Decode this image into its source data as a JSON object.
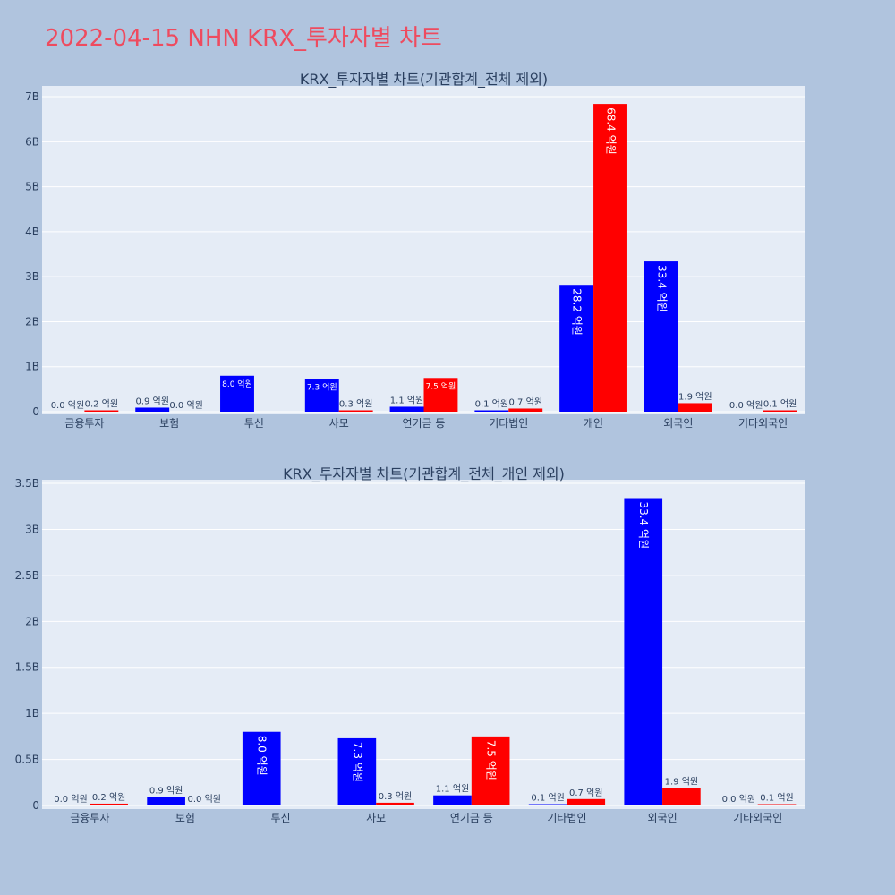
{
  "page_title": "2022-04-15 NHN KRX_투자자별 차트",
  "colors": {
    "buy": "#0000ff",
    "sell": "#ff0000",
    "title": "#ee4b5f",
    "background": "#b0c4de",
    "plot": "#e5ecf6"
  },
  "chart_data": [
    {
      "type": "bar",
      "title": "KRX_투자자별 차트(기관합계_전체 제외)",
      "categories": [
        "금융투자",
        "보험",
        "투신",
        "사모",
        "연기금 등",
        "기타법인",
        "개인",
        "외국인",
        "기타외국인"
      ],
      "series": [
        {
          "color": "#0000ff",
          "values": [
            0.0,
            0.09,
            0.8,
            0.73,
            0.11,
            0.01,
            2.82,
            3.34,
            0.0
          ],
          "labels": [
            "0.0 억원",
            "0.9 억원",
            "8.0 억원",
            "7.3 억원",
            "1.1 억원",
            "0.1 억원",
            "28.2 억원",
            "33.4 억원",
            "0.0 억원"
          ]
        },
        {
          "color": "#ff0000",
          "values": [
            0.02,
            0.0,
            0.0,
            0.03,
            0.75,
            0.07,
            6.84,
            0.19,
            0.01
          ],
          "labels": [
            "0.2 억원",
            "0.0 억원",
            "",
            "0.3 억원",
            "7.5 억원",
            "0.7 억원",
            "68.4 억원",
            "1.9 억원",
            "0.1 억원"
          ]
        }
      ],
      "y_ticks": [
        {
          "value": 0,
          "label": "0"
        },
        {
          "value": 1,
          "label": "1B"
        },
        {
          "value": 2,
          "label": "2B"
        },
        {
          "value": 3,
          "label": "3B"
        },
        {
          "value": 4,
          "label": "4B"
        },
        {
          "value": 5,
          "label": "5B"
        },
        {
          "value": 6,
          "label": "6B"
        },
        {
          "value": 7,
          "label": "7B"
        }
      ],
      "ylim": [
        0,
        7.2
      ],
      "grid": true
    },
    {
      "type": "bar",
      "title": "KRX_투자자별 차트(기관합계_전체_개인 제외)",
      "categories": [
        "금융투자",
        "보험",
        "투신",
        "사모",
        "연기금 등",
        "기타법인",
        "외국인",
        "기타외국인"
      ],
      "series": [
        {
          "color": "#0000ff",
          "values": [
            0.0,
            0.09,
            0.8,
            0.73,
            0.11,
            0.01,
            3.34,
            0.0
          ],
          "labels": [
            "0.0 억원",
            "0.9 억원",
            "8.0 억원",
            "7.3 억원",
            "1.1 억원",
            "0.1 억원",
            "33.4 억원",
            "0.0 억원"
          ]
        },
        {
          "color": "#ff0000",
          "values": [
            0.02,
            0.0,
            0.0,
            0.03,
            0.75,
            0.07,
            0.19,
            0.01
          ],
          "labels": [
            "0.2 억원",
            "0.0 억원",
            "",
            "0.3 억원",
            "7.5 억원",
            "0.7 억원",
            "1.9 억원",
            "0.1 억원"
          ]
        }
      ],
      "y_ticks": [
        {
          "value": 0,
          "label": "0"
        },
        {
          "value": 0.5,
          "label": "0.5B"
        },
        {
          "value": 1,
          "label": "1B"
        },
        {
          "value": 1.5,
          "label": "1.5B"
        },
        {
          "value": 2,
          "label": "2B"
        },
        {
          "value": 2.5,
          "label": "2.5B"
        },
        {
          "value": 3,
          "label": "3B"
        },
        {
          "value": 3.5,
          "label": "3.5B"
        }
      ],
      "ylim": [
        0,
        3.52
      ],
      "grid": true
    }
  ]
}
